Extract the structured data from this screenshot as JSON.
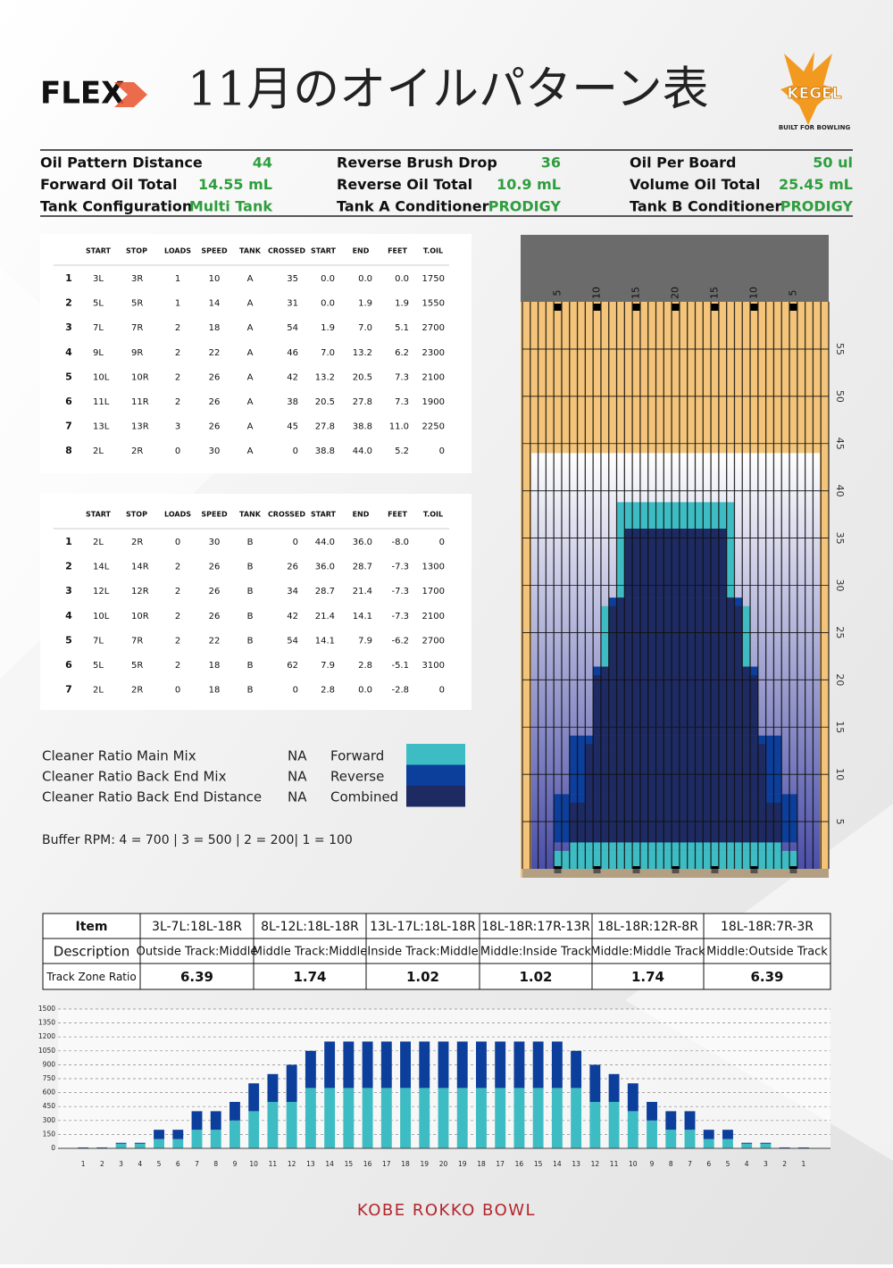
{
  "header": {
    "logo": "FLEX",
    "title": "11月のオイルパターン表",
    "brand": "KEGEL",
    "tagline": "BUILT FOR BOWLING"
  },
  "summary": [
    {
      "label": "Oil Pattern Distance",
      "value": 44
    },
    {
      "label": "Reverse Brush Drop",
      "value": "36"
    },
    {
      "label": "Oil Per Board",
      "value": "50 ul"
    },
    {
      "label": "Forward Oil Total",
      "value": "14.55 mL"
    },
    {
      "label": "Reverse Oil Total",
      "value": "10.9 mL"
    },
    {
      "label": "Volume Oil Total",
      "value": "25.45 mL"
    },
    {
      "label": "Tank Configuration",
      "value": "Multi Tank"
    },
    {
      "label": "Tank A Conditioner",
      "value": "PRODIGY"
    },
    {
      "label": "Tank B Conditioner",
      "value": "PRODIGY"
    }
  ],
  "forward_table": {
    "columns": [
      "START",
      "STOP",
      "LOADS",
      "SPEED",
      "TANK",
      "CROSSED",
      "START",
      "END",
      "FEET",
      "T.OIL"
    ],
    "rows": [
      [
        "1",
        "3L",
        "3R",
        "1",
        "10",
        "A",
        "35",
        "0.0",
        "0.0",
        "0.0",
        "1750"
      ],
      [
        "2",
        "5L",
        "5R",
        "1",
        "14",
        "A",
        "31",
        "0.0",
        "1.9",
        "1.9",
        "1550"
      ],
      [
        "3",
        "7L",
        "7R",
        "2",
        "18",
        "A",
        "54",
        "1.9",
        "7.0",
        "5.1",
        "2700"
      ],
      [
        "4",
        "9L",
        "9R",
        "2",
        "22",
        "A",
        "46",
        "7.0",
        "13.2",
        "6.2",
        "2300"
      ],
      [
        "5",
        "10L",
        "10R",
        "2",
        "26",
        "A",
        "42",
        "13.2",
        "20.5",
        "7.3",
        "2100"
      ],
      [
        "6",
        "11L",
        "11R",
        "2",
        "26",
        "A",
        "38",
        "20.5",
        "27.8",
        "7.3",
        "1900"
      ],
      [
        "7",
        "13L",
        "13R",
        "3",
        "26",
        "A",
        "45",
        "27.8",
        "38.8",
        "11.0",
        "2250"
      ],
      [
        "8",
        "2L",
        "2R",
        "0",
        "30",
        "A",
        "0",
        "38.8",
        "44.0",
        "5.2",
        "0"
      ]
    ]
  },
  "reverse_table": {
    "columns": [
      "START",
      "STOP",
      "LOADS",
      "SPEED",
      "TANK",
      "CROSSED",
      "START",
      "END",
      "FEET",
      "T.OIL"
    ],
    "rows": [
      [
        "1",
        "2L",
        "2R",
        "0",
        "30",
        "B",
        "0",
        "44.0",
        "36.0",
        "-8.0",
        "0"
      ],
      [
        "2",
        "14L",
        "14R",
        "2",
        "26",
        "B",
        "26",
        "36.0",
        "28.7",
        "-7.3",
        "1300"
      ],
      [
        "3",
        "12L",
        "12R",
        "2",
        "26",
        "B",
        "34",
        "28.7",
        "21.4",
        "-7.3",
        "1700"
      ],
      [
        "4",
        "10L",
        "10R",
        "2",
        "26",
        "B",
        "42",
        "21.4",
        "14.1",
        "-7.3",
        "2100"
      ],
      [
        "5",
        "7L",
        "7R",
        "2",
        "22",
        "B",
        "54",
        "14.1",
        "7.9",
        "-6.2",
        "2700"
      ],
      [
        "6",
        "5L",
        "5R",
        "2",
        "18",
        "B",
        "62",
        "7.9",
        "2.8",
        "-5.1",
        "3100"
      ],
      [
        "7",
        "2L",
        "2R",
        "0",
        "18",
        "B",
        "0",
        "2.8",
        "0.0",
        "-2.8",
        "0"
      ]
    ]
  },
  "legend": {
    "ratios": [
      {
        "label": "Cleaner Ratio Main Mix",
        "value": "NA"
      },
      {
        "label": "Cleaner Ratio Back End Mix",
        "value": "NA"
      },
      {
        "label": "Cleaner Ratio Back End Distance",
        "value": "NA"
      }
    ],
    "keys": [
      {
        "name": "Forward",
        "color": "#3dbdc3"
      },
      {
        "name": "Reverse",
        "color": "#0c3e9c"
      },
      {
        "name": "Combined",
        "color": "#1e2a62"
      }
    ]
  },
  "buffer": "Buffer RPM: 4 = 700 | 3 = 500 | 2 = 200| 1 = 100",
  "lane": {
    "xlim": [
      0,
      39
    ],
    "ylim": [
      0,
      60
    ],
    "board_ticks": [
      5,
      10,
      15,
      20,
      {
        "value": 25,
        "label": "15"
      },
      {
        "value": 30,
        "label": "10"
      },
      {
        "value": 35,
        "label": "5"
      }
    ],
    "distance_ticks": [
      5,
      10,
      15,
      20,
      25,
      30,
      35,
      40,
      45,
      50,
      55
    ]
  },
  "track_zones": {
    "header": [
      "Item",
      "3L-7L:18L-18R",
      "8L-12L:18L-18R",
      "13L-17L:18L-18R",
      "18L-18R:17R-13R",
      "18L-18R:12R-8R",
      "18L-18R:7R-3R"
    ],
    "rows": [
      [
        "Description",
        "Outside Track:Middle",
        "Middle Track:Middle",
        "Inside Track:Middle",
        "Middle:Inside Track",
        "Middle:Middle Track",
        "Middle:Outside Track"
      ],
      [
        "Track Zone Ratio",
        "6.39",
        "1.74",
        "1.02",
        "1.02",
        "1.74",
        "6.39"
      ]
    ]
  },
  "chart_data": {
    "type": "bar",
    "stacked": true,
    "categories": [
      "1",
      "2",
      "3",
      "4",
      "5",
      "6",
      "7",
      "8",
      "9",
      "10",
      "11",
      "12",
      "13",
      "14",
      "15",
      "16",
      "17",
      "18",
      "19",
      "20",
      "19",
      "18",
      "17",
      "16",
      "15",
      "14",
      "13",
      "12",
      "11",
      "10",
      "9",
      "8",
      "7",
      "6",
      "5",
      "4",
      "3",
      "2",
      "1"
    ],
    "series": [
      {
        "color": "#3dbdc3",
        "values": [
          5,
          5,
          50,
          50,
          100,
          100,
          200,
          200,
          300,
          400,
          500,
          500,
          650,
          650,
          650,
          650,
          650,
          650,
          650,
          650,
          650,
          650,
          650,
          650,
          650,
          650,
          650,
          500,
          500,
          400,
          300,
          200,
          200,
          100,
          100,
          50,
          50,
          5,
          5
        ]
      },
      {
        "color": "#0c3e9c",
        "values": [
          5,
          5,
          10,
          10,
          100,
          100,
          200,
          200,
          200,
          300,
          300,
          400,
          400,
          500,
          500,
          500,
          500,
          500,
          500,
          500,
          500,
          500,
          500,
          500,
          500,
          500,
          400,
          400,
          300,
          300,
          200,
          200,
          200,
          100,
          100,
          10,
          10,
          5,
          5
        ]
      }
    ],
    "ylim": [
      0,
      1500
    ],
    "yticks": [
      0,
      150,
      300,
      450,
      600,
      750,
      900,
      1050,
      1200,
      1350,
      1500
    ],
    "grid": true
  },
  "footer": "KOBE ROKKO BOWL"
}
